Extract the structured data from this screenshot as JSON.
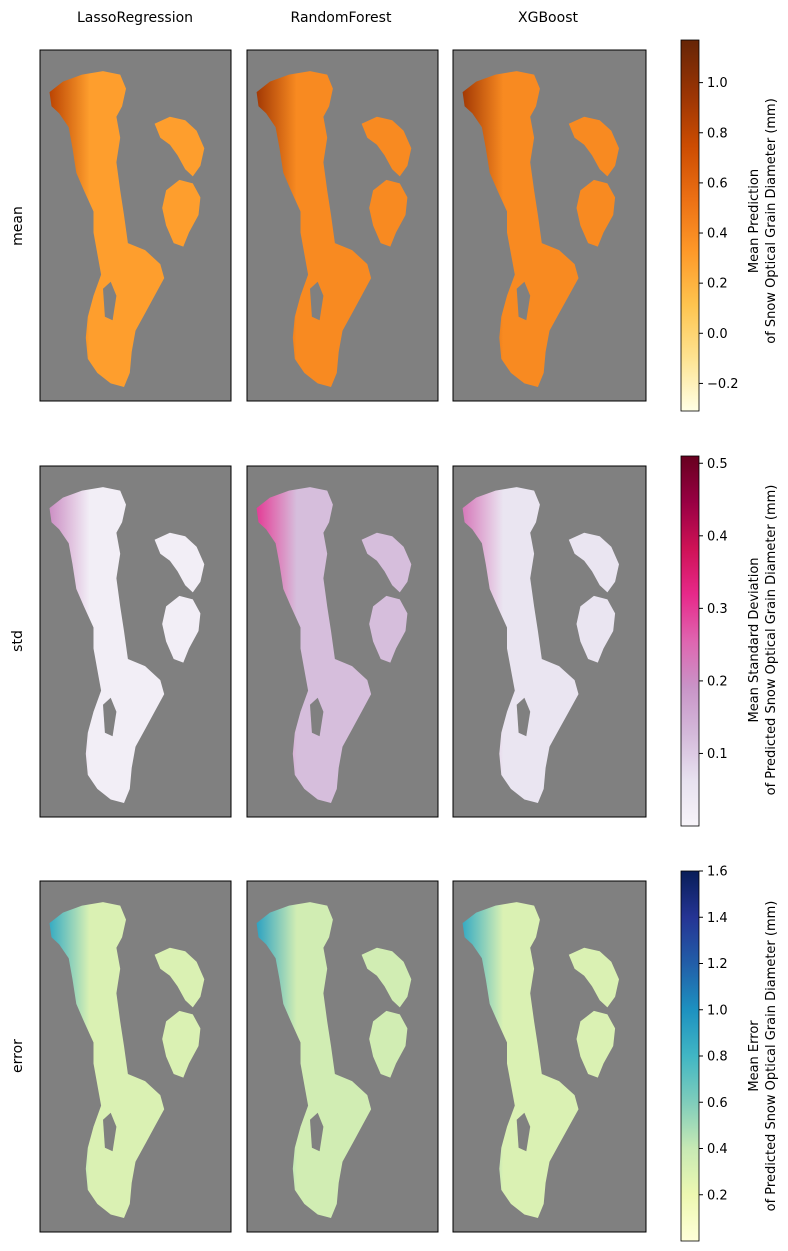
{
  "columns": [
    "LassoRegression",
    "RandomForest",
    "XGBoost"
  ],
  "rows": [
    "mean",
    "std",
    "error"
  ],
  "colors": {
    "panel_background": "#808080",
    "mean_cmap": [
      "#ffffe5",
      "#fee391",
      "#fec44f",
      "#fe9929",
      "#ec7014",
      "#cc4c02",
      "#993404",
      "#662506"
    ],
    "std_cmap": [
      "#f7f4f9",
      "#e7e1ef",
      "#d4b9da",
      "#c994c7",
      "#df65b0",
      "#e7298a",
      "#ce1256",
      "#980043",
      "#67001f"
    ],
    "error_cmap": [
      "#ffffd9",
      "#edf8b1",
      "#c7e9b4",
      "#7fcdbb",
      "#41b6c4",
      "#1d91c0",
      "#225ea8",
      "#253494",
      "#081d58"
    ]
  },
  "colorbars": [
    {
      "row": "mean",
      "cmap": "YlOrBr",
      "label_line1": "Mean Prediction",
      "label_line2": "of Snow Optical Grain Diameter (mm)",
      "vmin": -0.31,
      "vmax": 1.17,
      "ticks": [
        -0.2,
        0.0,
        0.2,
        0.4,
        0.6,
        0.8,
        1.0
      ],
      "tick_labels": [
        "−0.2",
        "0.0",
        "0.2",
        "0.4",
        "0.6",
        "0.8",
        "1.0"
      ]
    },
    {
      "row": "std",
      "cmap": "PuRd",
      "label_line1": "Mean Standard Deviation",
      "label_line2": "of Predicted Snow Optical Grain Diameter (mm)",
      "vmin": 0.0,
      "vmax": 0.51,
      "ticks": [
        0.1,
        0.2,
        0.3,
        0.4,
        0.5
      ],
      "tick_labels": [
        "0.1",
        "0.2",
        "0.3",
        "0.4",
        "0.5"
      ]
    },
    {
      "row": "error",
      "cmap": "YlGnBu",
      "label_line1": "Mean Error",
      "label_line2": "of Predicted Snow Optical Grain Diameter (mm)",
      "vmin": 0.0,
      "vmax": 1.6,
      "ticks": [
        0.2,
        0.4,
        0.6,
        0.8,
        1.0,
        1.2,
        1.4,
        1.6
      ],
      "tick_labels": [
        "0.2",
        "0.4",
        "0.6",
        "0.8",
        "1.0",
        "1.2",
        "1.4",
        "1.6"
      ]
    }
  ],
  "chart_data": {
    "type": "heatmap",
    "layout": "3 rows x 3 columns of map panels with one colorbar per row",
    "columns": [
      "LassoRegression",
      "RandomForest",
      "XGBoost"
    ],
    "rows": [
      "mean",
      "std",
      "error"
    ],
    "grid": false,
    "axes_ticks": false,
    "typical_values_mm": {
      "mean": {
        "LassoRegression": 0.3,
        "RandomForest": 0.4,
        "XGBoost": 0.4
      },
      "std": {
        "LassoRegression": 0.02,
        "RandomForest": 0.12,
        "XGBoost": 0.05
      },
      "error": {
        "LassoRegression": 0.3,
        "RandomForest": 0.35,
        "XGBoost": 0.3
      }
    },
    "colorbar_ranges": {
      "mean": [
        -0.31,
        1.17
      ],
      "std": [
        0.0,
        0.51
      ],
      "error": [
        0.0,
        1.6
      ]
    }
  }
}
